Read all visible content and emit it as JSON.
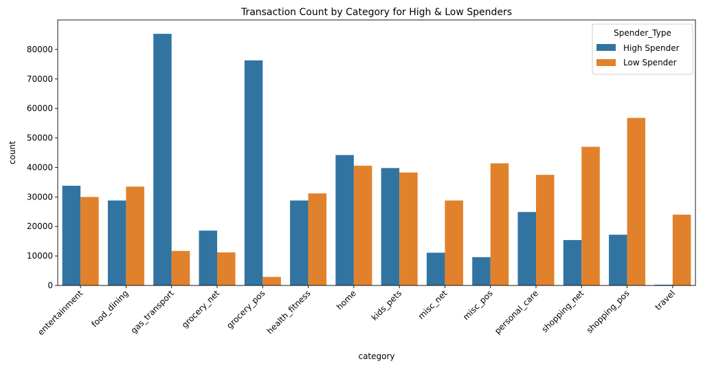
{
  "chart_data": {
    "type": "bar",
    "title": "Transaction Count by Category for High & Low Spenders",
    "xlabel": "category",
    "ylabel": "count",
    "ylim": [
      0,
      90000
    ],
    "yticks": [
      0,
      10000,
      20000,
      30000,
      40000,
      50000,
      60000,
      70000,
      80000
    ],
    "ytick_labels": [
      "0",
      "10000",
      "20000",
      "30000",
      "40000",
      "50000",
      "60000",
      "70000",
      "80000"
    ],
    "categories": [
      "entertainment",
      "food_dining",
      "gas_transport",
      "grocery_net",
      "grocery_pos",
      "health_fitness",
      "home",
      "kids_pets",
      "misc_net",
      "misc_pos",
      "personal_care",
      "shopping_net",
      "shopping_pos",
      "travel"
    ],
    "series": [
      {
        "name": "High Spender",
        "color": "#3274a1",
        "values": [
          33800,
          28800,
          85300,
          18600,
          76300,
          28800,
          44200,
          39800,
          11100,
          9600,
          24900,
          15400,
          17200,
          250
        ]
      },
      {
        "name": "Low Spender",
        "color": "#e1812c",
        "values": [
          30000,
          33500,
          11700,
          11200,
          2900,
          31200,
          40600,
          38300,
          28800,
          41400,
          37500,
          47000,
          56800,
          24000
        ]
      }
    ],
    "legend": {
      "title": "Spender_Type",
      "placement": "top-right"
    },
    "grid": false
  }
}
